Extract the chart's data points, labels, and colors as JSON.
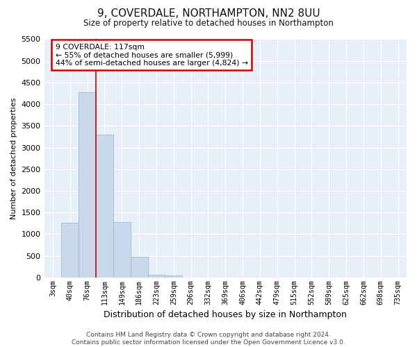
{
  "title": "9, COVERDALE, NORTHAMPTON, NN2 8UU",
  "subtitle": "Size of property relative to detached houses in Northampton",
  "xlabel": "Distribution of detached houses by size in Northampton",
  "ylabel": "Number of detached properties",
  "bar_color": "#c8d9eb",
  "bar_edge_color": "#9ab8d2",
  "categories": [
    "3sqm",
    "40sqm",
    "76sqm",
    "113sqm",
    "149sqm",
    "186sqm",
    "223sqm",
    "259sqm",
    "296sqm",
    "332sqm",
    "369sqm",
    "406sqm",
    "442sqm",
    "479sqm",
    "515sqm",
    "552sqm",
    "589sqm",
    "625sqm",
    "662sqm",
    "698sqm",
    "735sqm"
  ],
  "values": [
    0,
    1260,
    4280,
    3300,
    1280,
    480,
    65,
    50,
    0,
    0,
    0,
    0,
    0,
    0,
    0,
    0,
    0,
    0,
    0,
    0,
    0
  ],
  "ylim": [
    0,
    5500
  ],
  "yticks": [
    0,
    500,
    1000,
    1500,
    2000,
    2500,
    3000,
    3500,
    4000,
    4500,
    5000,
    5500
  ],
  "annotation_text": "9 COVERDALE: 117sqm\n← 55% of detached houses are smaller (5,999)\n44% of semi-detached houses are larger (4,824) →",
  "annotation_box_color": "#ffffff",
  "annotation_border_color": "#cc0000",
  "vline_color": "#cc0000",
  "vline_x": 2.5,
  "bg_color": "#e8eef5",
  "plot_bg_color": "#e8eef5",
  "grid_color": "#ffffff",
  "footer": "Contains HM Land Registry data © Crown copyright and database right 2024.\nContains public sector information licensed under the Open Government Licence v3.0."
}
